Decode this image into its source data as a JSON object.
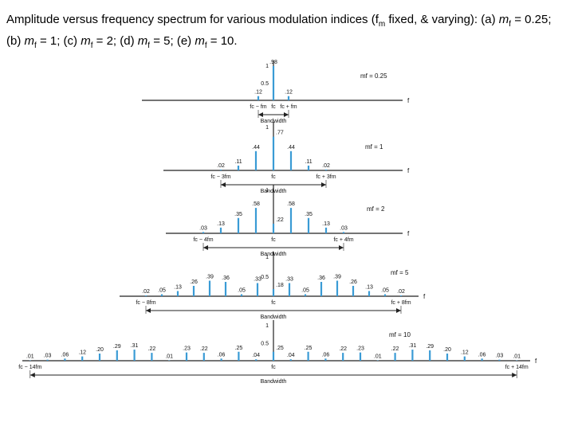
{
  "caption": {
    "part1": "Amplitude versus frequency spectrum for various modulation indices (f",
    "sub_m": "m",
    "part2": " fixed, & varying): (a) ",
    "mf": "m",
    "sub_f": "f",
    "a_val": " = 0.25; (b) ",
    "b_val": " = 1; (c) ",
    "c_val": " = 2; (d) ",
    "d_val": " = 5; (e) ",
    "e_val": " = 10."
  },
  "colors": {
    "bar": "#3a9bd5",
    "axis": "#222222"
  },
  "chart_data": [
    {
      "type": "bar",
      "panel": "a",
      "mf_label": "mf = 0.25",
      "ylim": [
        0,
        1
      ],
      "yticks": [
        "1",
        "0.5"
      ],
      "bars": [
        {
          "n": -1,
          "v": 0.12,
          "label": ".12"
        },
        {
          "n": 0,
          "v": 0.98,
          "label": ".98"
        },
        {
          "n": 1,
          "v": 0.12,
          "label": ".12"
        }
      ],
      "x_labels": [
        {
          "n": -1,
          "text": "fc − fm"
        },
        {
          "n": 0,
          "text": "fc"
        },
        {
          "n": 1,
          "text": "fc + fm"
        }
      ],
      "bandwidth_n": 1,
      "bandwidth_label": "Bandwidth",
      "axis_label": "f"
    },
    {
      "type": "bar",
      "panel": "b",
      "mf_label": "mf = 1",
      "ylim": [
        0,
        1
      ],
      "yticks": [
        "1"
      ],
      "bars": [
        {
          "n": -3,
          "v": 0.02,
          "label": ".02"
        },
        {
          "n": -2,
          "v": 0.11,
          "label": ".11"
        },
        {
          "n": -1,
          "v": 0.44,
          "label": ".44"
        },
        {
          "n": 0,
          "v": 0.77,
          "label": ".77"
        },
        {
          "n": 1,
          "v": 0.44,
          "label": ".44"
        },
        {
          "n": 2,
          "v": 0.11,
          "label": ".11"
        },
        {
          "n": 3,
          "v": 0.02,
          "label": ".02"
        }
      ],
      "x_labels": [
        {
          "n": -3,
          "text": "fc − 3fm"
        },
        {
          "n": 0,
          "text": "fc"
        },
        {
          "n": 3,
          "text": "fc + 3fm"
        }
      ],
      "bandwidth_n": 3,
      "bandwidth_label": "Bandwidth",
      "axis_label": "f"
    },
    {
      "type": "bar",
      "panel": "c",
      "mf_label": "mf = 2",
      "ylim": [
        0,
        1
      ],
      "yticks": [
        "1"
      ],
      "bars": [
        {
          "n": -4,
          "v": 0.03,
          "label": ".03"
        },
        {
          "n": -3,
          "v": 0.13,
          "label": ".13"
        },
        {
          "n": -2,
          "v": 0.35,
          "label": ".35"
        },
        {
          "n": -1,
          "v": 0.58,
          "label": ".58"
        },
        {
          "n": 0,
          "v": 0.22,
          "label": ".22"
        },
        {
          "n": 1,
          "v": 0.58,
          "label": ".58"
        },
        {
          "n": 2,
          "v": 0.35,
          "label": ".35"
        },
        {
          "n": 3,
          "v": 0.13,
          "label": ".13"
        },
        {
          "n": 4,
          "v": 0.03,
          "label": ".03"
        }
      ],
      "x_labels": [
        {
          "n": -4,
          "text": "fc − 4fm"
        },
        {
          "n": 0,
          "text": "fc"
        },
        {
          "n": 4,
          "text": "fc + 4fm"
        }
      ],
      "bandwidth_n": 4,
      "bandwidth_label": "Bandwidth",
      "axis_label": "f"
    },
    {
      "type": "bar",
      "panel": "d",
      "mf_label": "mf = 5",
      "ylim": [
        0,
        1
      ],
      "yticks": [
        "1",
        "0.5"
      ],
      "bars": [
        {
          "n": -8,
          "v": 0.02,
          "label": ".02"
        },
        {
          "n": -7,
          "v": 0.05,
          "label": ".05"
        },
        {
          "n": -6,
          "v": 0.13,
          "label": ".13"
        },
        {
          "n": -5,
          "v": 0.26,
          "label": ".26"
        },
        {
          "n": -4,
          "v": 0.39,
          "label": ".39"
        },
        {
          "n": -3,
          "v": 0.36,
          "label": ".36"
        },
        {
          "n": -2,
          "v": 0.05,
          "label": ".05"
        },
        {
          "n": -1,
          "v": 0.33,
          "label": ".33"
        },
        {
          "n": 0,
          "v": 0.18,
          "label": ".18"
        },
        {
          "n": 1,
          "v": 0.33,
          "label": ".33"
        },
        {
          "n": 2,
          "v": 0.05,
          "label": ".05"
        },
        {
          "n": 3,
          "v": 0.36,
          "label": ".36"
        },
        {
          "n": 4,
          "v": 0.39,
          "label": ".39"
        },
        {
          "n": 5,
          "v": 0.26,
          "label": ".26"
        },
        {
          "n": 6,
          "v": 0.13,
          "label": ".13"
        },
        {
          "n": 7,
          "v": 0.05,
          "label": ".05"
        },
        {
          "n": 8,
          "v": 0.02,
          "label": ".02"
        }
      ],
      "x_labels": [
        {
          "n": -8,
          "text": "fc − 8fm"
        },
        {
          "n": 0,
          "text": "fc"
        },
        {
          "n": 8,
          "text": "fc + 8fm"
        }
      ],
      "bandwidth_n": 8,
      "bandwidth_label": "Bandwidth",
      "axis_label": "f"
    },
    {
      "type": "bar",
      "panel": "e",
      "mf_label": "mf = 10",
      "ylim": [
        0,
        1
      ],
      "yticks": [
        "1",
        "0.5"
      ],
      "bars": [
        {
          "n": -14,
          "v": 0.01,
          "label": ".01"
        },
        {
          "n": -13,
          "v": 0.03,
          "label": ".03"
        },
        {
          "n": -12,
          "v": 0.06,
          "label": ".06"
        },
        {
          "n": -11,
          "v": 0.12,
          "label": ".12"
        },
        {
          "n": -10,
          "v": 0.2,
          "label": ".20"
        },
        {
          "n": -9,
          "v": 0.29,
          "label": ".29"
        },
        {
          "n": -8,
          "v": 0.31,
          "label": ".31"
        },
        {
          "n": -7,
          "v": 0.22,
          "label": ".22"
        },
        {
          "n": -6,
          "v": 0.01,
          "label": ".01"
        },
        {
          "n": -5,
          "v": 0.23,
          "label": ".23"
        },
        {
          "n": -4,
          "v": 0.22,
          "label": ".22"
        },
        {
          "n": -3,
          "v": 0.06,
          "label": ".06"
        },
        {
          "n": -2,
          "v": 0.25,
          "label": ".25"
        },
        {
          "n": -1,
          "v": 0.04,
          "label": ".04"
        },
        {
          "n": 0,
          "v": 0.25,
          "label": ".25"
        },
        {
          "n": 1,
          "v": 0.04,
          "label": ".04"
        },
        {
          "n": 2,
          "v": 0.25,
          "label": ".25"
        },
        {
          "n": 3,
          "v": 0.06,
          "label": ".06"
        },
        {
          "n": 4,
          "v": 0.22,
          "label": ".22"
        },
        {
          "n": 5,
          "v": 0.23,
          "label": ".23"
        },
        {
          "n": 6,
          "v": 0.01,
          "label": ".01"
        },
        {
          "n": 7,
          "v": 0.22,
          "label": ".22"
        },
        {
          "n": 8,
          "v": 0.31,
          "label": ".31"
        },
        {
          "n": 9,
          "v": 0.29,
          "label": ".29"
        },
        {
          "n": 10,
          "v": 0.2,
          "label": ".20"
        },
        {
          "n": 11,
          "v": 0.12,
          "label": ".12"
        },
        {
          "n": 12,
          "v": 0.06,
          "label": ".06"
        },
        {
          "n": 13,
          "v": 0.03,
          "label": ".03"
        },
        {
          "n": 14,
          "v": 0.01,
          "label": ".01"
        }
      ],
      "x_labels": [
        {
          "n": -14,
          "text": "fc − 14fm"
        },
        {
          "n": 0,
          "text": "fc"
        },
        {
          "n": 14,
          "text": "fc + 14fm"
        }
      ],
      "bandwidth_n": 14,
      "bandwidth_label": "Bandwidth",
      "axis_label": "f"
    }
  ]
}
